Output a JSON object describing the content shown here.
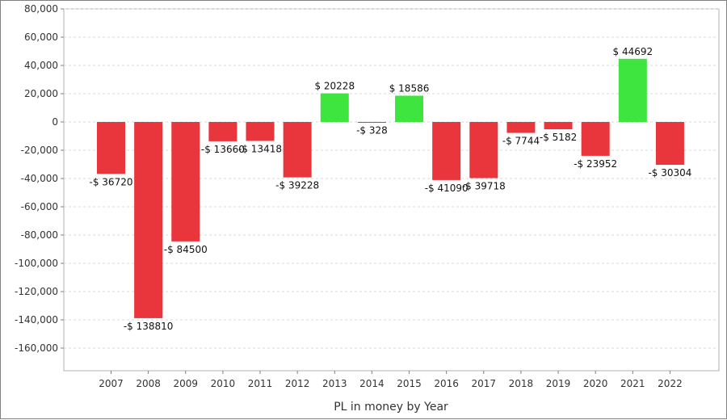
{
  "chart_data": {
    "type": "bar",
    "title": "",
    "xlabel": "PL in money by Year",
    "ylabel": "",
    "ylim": [
      -180000,
      80000
    ],
    "yticks": [
      80000,
      60000,
      40000,
      20000,
      0,
      -20000,
      -40000,
      -60000,
      -80000,
      -100000,
      -120000,
      -140000,
      -160000
    ],
    "ytick_labels": [
      "80,000",
      "60,000",
      "40,000",
      "20,000",
      "0",
      "-20,000",
      "-40,000",
      "-60,000",
      "-80,000",
      "-100,000",
      "-120,000",
      "-140,000",
      "-160,000"
    ],
    "grid": true,
    "categories": [
      "2007",
      "2008",
      "2009",
      "2010",
      "2011",
      "2012",
      "2013",
      "2014",
      "2015",
      "2016",
      "2017",
      "2018",
      "2019",
      "2020",
      "2021",
      "2022"
    ],
    "values": [
      -36720,
      -138810,
      -84500,
      -13660,
      -13418,
      -39228,
      20228,
      -328,
      18586,
      -41090,
      -39718,
      -7744,
      -5182,
      -23952,
      44692,
      -30304
    ],
    "data_labels": [
      "-$ 36720",
      "-$ 138810",
      "-$ 84500",
      "-$ 13660",
      "-$ 13418",
      "-$ 39228",
      "$ 20228",
      "-$ 328",
      "$ 18586",
      "-$ 41090",
      "-$ 39718",
      "-$ 7744",
      "-$ 5182",
      "-$ 23952",
      "$ 44692",
      "-$ 30304"
    ],
    "colors": {
      "positive": "#3fe53f",
      "negative": "#e8363c"
    }
  }
}
